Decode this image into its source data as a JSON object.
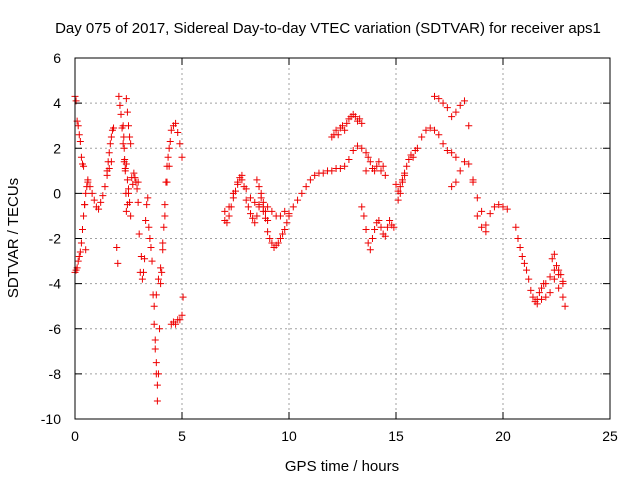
{
  "chart_data": {
    "type": "scatter",
    "title": "Day 075 of 2017, Sidereal Day-to-day VTEC variation (SDTVAR) for receiver aps1",
    "xlabel": "GPS time / hours",
    "ylabel": "SDTVAR / TECUs",
    "xlim": [
      0,
      25
    ],
    "ylim": [
      -10,
      6
    ],
    "xticks": [
      0,
      5,
      10,
      15,
      20,
      25
    ],
    "yticks": [
      -10,
      -8,
      -6,
      -4,
      -2,
      0,
      2,
      4,
      6
    ],
    "xtick_labels": [
      "0",
      "5",
      "10",
      "15",
      "20",
      "25"
    ],
    "ytick_labels": [
      "-10",
      "-8",
      "-6",
      "-4",
      "-2",
      "0",
      "2",
      "4",
      "6"
    ],
    "grid": true,
    "marker": "plus",
    "color": "#ee0000",
    "series": [
      {
        "name": "aps1",
        "segments": [
          {
            "x": [
              0.0,
              0.05,
              0.1,
              0.15,
              0.2,
              0.25,
              0.3,
              0.35,
              0.4,
              0.45,
              0.5
            ],
            "y": [
              4.3,
              4.1,
              3.2,
              3.0,
              2.6,
              2.3,
              1.6,
              1.3,
              1.2,
              -0.5,
              -2.5
            ]
          },
          {
            "x": [
              0.0,
              0.05,
              0.1,
              0.15,
              0.2,
              0.25,
              0.3,
              0.35,
              0.4,
              0.45,
              0.5,
              0.55,
              0.6
            ],
            "y": [
              -3.5,
              -3.4,
              -3.3,
              -3.0,
              -2.8,
              -2.6,
              -2.2,
              -1.6,
              -1.0,
              -0.5,
              0.0,
              0.3,
              0.5
            ]
          },
          {
            "x": [
              0.6,
              0.7,
              0.8,
              0.9,
              1.0,
              1.1,
              1.2,
              1.3,
              1.4,
              1.5,
              1.6,
              1.7
            ],
            "y": [
              0.6,
              0.3,
              0.0,
              -0.3,
              -0.6,
              -0.7,
              -0.4,
              -0.1,
              0.3,
              0.8,
              1.1,
              1.4
            ]
          },
          {
            "x": [
              1.5,
              1.55,
              1.6,
              1.65,
              1.7,
              1.75,
              1.8
            ],
            "y": [
              1.0,
              1.4,
              1.8,
              2.2,
              2.5,
              2.8,
              2.9
            ]
          },
          {
            "x": [
              1.95,
              2.0
            ],
            "y": [
              -2.4,
              -3.1
            ]
          },
          {
            "x": [
              2.05,
              2.1,
              2.15,
              2.2,
              2.25,
              2.3,
              2.35,
              2.4,
              2.45,
              2.5,
              2.55,
              2.6,
              2.65,
              2.7,
              2.75,
              2.8,
              2.85,
              2.9,
              2.95
            ],
            "y": [
              4.3,
              3.9,
              3.5,
              2.9,
              2.2,
              1.4,
              1.1,
              1.3,
              0.6,
              0.2,
              -0.4,
              -1.0,
              0.7,
              0.4,
              0.9,
              0.7,
              0.5,
              0.2,
              0.5
            ]
          },
          {
            "x": [
              2.25,
              2.28,
              2.3,
              2.32,
              2.35,
              2.38,
              2.4,
              2.45,
              2.5
            ],
            "y": [
              3.0,
              2.5,
              2.0,
              1.5,
              1.0,
              0.0,
              -0.8,
              -0.5,
              0.0
            ]
          },
          {
            "x": [
              2.4,
              2.45,
              2.5,
              2.55,
              2.6
            ],
            "y": [
              4.2,
              3.6,
              3.0,
              2.5,
              2.2
            ]
          },
          {
            "x": [
              2.95,
              3.0,
              3.05,
              3.1,
              3.15,
              3.2,
              3.25,
              3.3,
              3.35,
              3.4,
              3.45,
              3.5,
              3.55,
              3.6,
              3.65,
              3.7,
              3.75,
              3.8,
              3.85
            ],
            "y": [
              -0.4,
              -1.8,
              -3.5,
              -2.8,
              -3.8,
              -3.5,
              -2.9,
              -1.2,
              -0.5,
              -0.2,
              -1.5,
              -2.0,
              -2.4,
              -3.0,
              -4.5,
              -5.8,
              -6.9,
              -8.0,
              -9.2
            ]
          },
          {
            "x": [
              3.7,
              3.75,
              3.8,
              3.85,
              3.9,
              3.95,
              4.0,
              4.05,
              4.1,
              4.15,
              4.2,
              4.25,
              4.3,
              4.35,
              4.4,
              4.45
            ],
            "y": [
              -5.0,
              -6.5,
              -7.5,
              -8.5,
              -8.0,
              -6.0,
              -4.0,
              -3.5,
              -2.5,
              -1.5,
              -0.5,
              0.5,
              1.2,
              1.6,
              2.0,
              2.3
            ]
          },
          {
            "x": [
              3.8,
              3.9,
              4.0,
              4.1,
              4.2,
              4.3,
              4.4,
              4.5,
              4.6,
              4.7,
              4.8,
              4.9,
              5.0
            ],
            "y": [
              -4.5,
              -3.8,
              -3.3,
              -2.2,
              -1.0,
              0.5,
              1.2,
              2.8,
              3.0,
              3.1,
              2.7,
              2.2,
              1.6
            ]
          },
          {
            "x": [
              4.5,
              4.6,
              4.7,
              4.8,
              4.9,
              5.0,
              5.05
            ],
            "y": [
              -5.8,
              -5.7,
              -5.8,
              -5.6,
              -5.6,
              -5.4,
              -4.6
            ]
          },
          {
            "x": [
              7.0,
              7.1,
              7.2,
              7.3,
              7.4,
              7.5,
              7.6,
              7.7,
              7.8,
              7.9,
              8.0,
              8.1,
              8.2,
              8.3,
              8.4,
              8.5,
              8.6,
              8.7,
              8.8,
              8.9,
              9.0,
              9.1,
              9.2,
              9.3,
              9.4,
              9.5,
              9.6,
              9.7,
              9.8,
              9.9,
              10.0
            ],
            "y": [
              -0.8,
              -1.3,
              -1.0,
              -0.6,
              -0.2,
              0.1,
              0.5,
              0.7,
              0.8,
              0.3,
              -0.3,
              -0.6,
              -0.9,
              -1.1,
              -1.3,
              -1.0,
              -0.5,
              -0.2,
              -0.6,
              -1.1,
              -1.7,
              -2.0,
              -2.2,
              -2.4,
              -2.3,
              -2.2,
              -2.0,
              -1.8,
              -1.6,
              -1.3,
              -1.0
            ]
          },
          {
            "x": [
              7.0,
              7.2,
              7.4,
              7.6,
              7.8,
              8.0,
              8.2,
              8.4,
              8.6,
              8.8,
              9.0,
              9.2,
              9.4,
              9.6,
              9.8
            ],
            "y": [
              -1.2,
              -0.6,
              0.0,
              0.4,
              0.6,
              0.2,
              -0.2,
              -0.4,
              -0.6,
              -0.8,
              -0.6,
              -0.8,
              -1.0,
              -1.0,
              -0.8
            ]
          },
          {
            "x": [
              8.5,
              8.6,
              8.7,
              8.8,
              8.9,
              9.0
            ],
            "y": [
              0.6,
              0.3,
              0.0,
              -0.4,
              -0.8,
              -1.2
            ]
          },
          {
            "x": [
              10.0,
              10.2,
              10.4,
              10.6,
              10.8,
              11.0,
              11.2,
              11.4,
              11.6,
              11.8,
              12.0,
              12.2,
              12.4,
              12.6,
              12.8,
              13.0,
              13.2,
              13.4,
              13.6
            ],
            "y": [
              -0.9,
              -0.6,
              -0.3,
              0.0,
              0.3,
              0.6,
              0.8,
              0.9,
              0.9,
              1.0,
              1.0,
              1.1,
              1.1,
              1.2,
              1.5,
              1.9,
              2.1,
              2.0,
              1.0
            ]
          },
          {
            "x": [
              12.0,
              12.1,
              12.2,
              12.3,
              12.4,
              12.5,
              12.6,
              12.7,
              12.8,
              12.9,
              13.0,
              13.1,
              13.2,
              13.3,
              13.4
            ],
            "y": [
              2.5,
              2.6,
              2.8,
              2.6,
              2.9,
              3.0,
              2.8,
              3.1,
              3.3,
              3.4,
              3.5,
              3.4,
              3.2,
              3.3,
              3.1
            ]
          },
          {
            "x": [
              13.4,
              13.5,
              13.6,
              13.7,
              13.8,
              13.9,
              14.0,
              14.1,
              14.2,
              14.3,
              14.4,
              14.5,
              14.6,
              14.7,
              14.8,
              14.9
            ],
            "y": [
              -0.6,
              -1.0,
              -1.6,
              -2.2,
              -2.5,
              -2.0,
              -1.6,
              -1.3,
              -1.2,
              -1.5,
              -1.8,
              -1.9,
              -1.5,
              -1.2,
              -1.4,
              -1.5
            ]
          },
          {
            "x": [
              13.6,
              13.7,
              13.8,
              13.9,
              14.0,
              14.1,
              14.2,
              14.3,
              14.4,
              14.5
            ],
            "y": [
              1.8,
              1.6,
              1.4,
              1.1,
              1.0,
              1.2,
              1.4,
              1.0,
              1.2,
              0.8
            ]
          },
          {
            "x": [
              15.0,
              15.1,
              15.2,
              15.3,
              15.4,
              15.5,
              15.6,
              15.7,
              15.8,
              15.9,
              16.0,
              16.2,
              16.4,
              16.6,
              16.8,
              17.0,
              17.2,
              17.4,
              17.6,
              17.8
            ],
            "y": [
              0.4,
              0.1,
              0.3,
              0.6,
              0.9,
              1.2,
              1.5,
              1.7,
              1.6,
              1.9,
              2.0,
              2.5,
              2.8,
              2.9,
              2.8,
              2.6,
              2.2,
              1.9,
              1.8,
              1.6
            ]
          },
          {
            "x": [
              15.1,
              15.2,
              15.3,
              15.4
            ],
            "y": [
              -0.3,
              0.0,
              0.5,
              0.8
            ]
          },
          {
            "x": [
              16.8,
              17.0,
              17.2,
              17.4,
              17.6,
              17.8,
              18.0,
              18.2,
              18.4,
              18.6,
              18.8,
              19.0,
              19.2
            ],
            "y": [
              4.3,
              4.2,
              4.0,
              3.8,
              3.4,
              3.6,
              3.9,
              4.1,
              3.0,
              0.5,
              -1.0,
              -1.5,
              -1.7
            ]
          },
          {
            "x": [
              17.6,
              17.8,
              18.0,
              18.2,
              18.4,
              18.6,
              18.8,
              19.0
            ],
            "y": [
              0.3,
              0.5,
              1.0,
              1.4,
              1.3,
              0.6,
              -0.2,
              -0.8
            ]
          },
          {
            "x": [
              19.2,
              19.4,
              19.6,
              19.8,
              20.0,
              20.2
            ],
            "y": [
              -1.4,
              -0.9,
              -0.6,
              -0.5,
              -0.6,
              -0.7
            ]
          },
          {
            "x": [
              20.6,
              20.7,
              20.8,
              20.9,
              21.0,
              21.1,
              21.2,
              21.3,
              21.4,
              21.5,
              21.6,
              21.7,
              21.8,
              21.9,
              22.0,
              22.2,
              22.4,
              22.6,
              22.8
            ],
            "y": [
              -1.5,
              -2.0,
              -2.4,
              -2.8,
              -3.1,
              -3.4,
              -3.8,
              -4.3,
              -4.6,
              -4.8,
              -4.7,
              -4.4,
              -4.2,
              -4.0,
              -4.0,
              -3.7,
              -3.4,
              -3.6,
              -4.0
            ]
          },
          {
            "x": [
              21.6,
              21.8,
              22.0,
              22.2,
              22.4,
              22.6,
              22.8,
              22.9
            ],
            "y": [
              -4.9,
              -4.7,
              -4.6,
              -4.4,
              -3.8,
              -4.2,
              -4.6,
              -5.0
            ]
          },
          {
            "x": [
              22.3,
              22.4,
              22.5,
              22.6,
              22.7,
              22.8
            ],
            "y": [
              -2.9,
              -2.7,
              -3.2,
              -3.4,
              -3.6,
              -3.9
            ]
          }
        ]
      }
    ]
  }
}
